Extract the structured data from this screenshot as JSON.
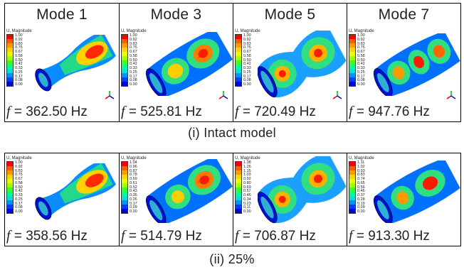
{
  "rows": [
    {
      "caption": "(i)   Intact model",
      "panels": [
        {
          "mode": "Mode 1",
          "f_symbol": "f",
          "freq": "= 362.50 Hz",
          "legend_title": "U, Magnitude",
          "ticks": [
            "1.00",
            "0.92",
            "0.83",
            "0.75",
            "0.67",
            "0.58",
            "0.50",
            "0.42",
            "0.33",
            "0.25",
            "0.17",
            "0.08",
            "0.00"
          ]
        },
        {
          "mode": "Mode 3",
          "f_symbol": "f",
          "freq": "= 525.81 Hz",
          "legend_title": "U, Magnitude",
          "ticks": [
            "1.00",
            "0.92",
            "0.83",
            "0.75",
            "0.67",
            "0.58",
            "0.50",
            "0.42",
            "0.33",
            "0.25",
            "0.17",
            "0.08",
            "0.00"
          ]
        },
        {
          "mode": "Mode 5",
          "f_symbol": "f",
          "freq": "= 720.49 Hz",
          "legend_title": "U, Magnitude",
          "ticks": [
            "1.00",
            "0.92",
            "0.83",
            "0.75",
            "0.67",
            "0.58",
            "0.50",
            "0.42",
            "0.33",
            "0.25",
            "0.17",
            "0.08",
            "0.00"
          ]
        },
        {
          "mode": "Mode 7",
          "f_symbol": "f",
          "freq": "= 947.76 Hz",
          "legend_title": "U, Magnitude",
          "ticks": [
            "1.00",
            "0.92",
            "0.83",
            "0.75",
            "0.67",
            "0.58",
            "0.50",
            "0.42",
            "0.33",
            "0.25",
            "0.17",
            "0.08",
            "0.00"
          ]
        }
      ]
    },
    {
      "caption": "(ii)  25%",
      "panels": [
        {
          "mode": "",
          "f_symbol": "f",
          "freq": "= 358.56 Hz",
          "legend_title": "U, Magnitude",
          "ticks": [
            "1.00",
            "0.92",
            "0.83",
            "0.75",
            "0.67",
            "0.58",
            "0.50",
            "0.42",
            "0.33",
            "0.25",
            "0.17",
            "0.08",
            "0.00"
          ]
        },
        {
          "mode": "",
          "f_symbol": "f",
          "freq": "= 514.79 Hz",
          "legend_title": "U, Magnitude",
          "ticks": [
            "1.04",
            "0.96",
            "0.87",
            "0.78",
            "0.69",
            "0.61",
            "0.52",
            "0.43",
            "0.35",
            "0.26",
            "0.17",
            "0.09",
            "0.00"
          ]
        },
        {
          "mode": "",
          "f_symbol": "f",
          "freq": "= 706.87 Hz",
          "legend_title": "U, Magnitude",
          "ticks": [
            "1.38",
            "1.26",
            "1.15",
            "1.03",
            "0.92",
            "0.80",
            "0.69",
            "0.57",
            "0.46",
            "0.34",
            "0.23",
            "0.11",
            "0.00"
          ]
        },
        {
          "mode": "",
          "f_symbol": "f",
          "freq": "= 913.30 Hz",
          "legend_title": "U, Magnitude",
          "ticks": [
            "1.11",
            "1.02",
            "0.93",
            "0.83",
            "0.74",
            "0.65",
            "0.56",
            "0.46",
            "0.37",
            "0.28",
            "0.19",
            "0.09",
            "0.00"
          ]
        }
      ]
    }
  ],
  "colormap": [
    "#ff0000",
    "#ff5a00",
    "#ff9900",
    "#ffd200",
    "#e6ff00",
    "#a0ff00",
    "#40ff20",
    "#00ff90",
    "#00e0e0",
    "#0090ff",
    "#0040ff",
    "#0000e0"
  ]
}
